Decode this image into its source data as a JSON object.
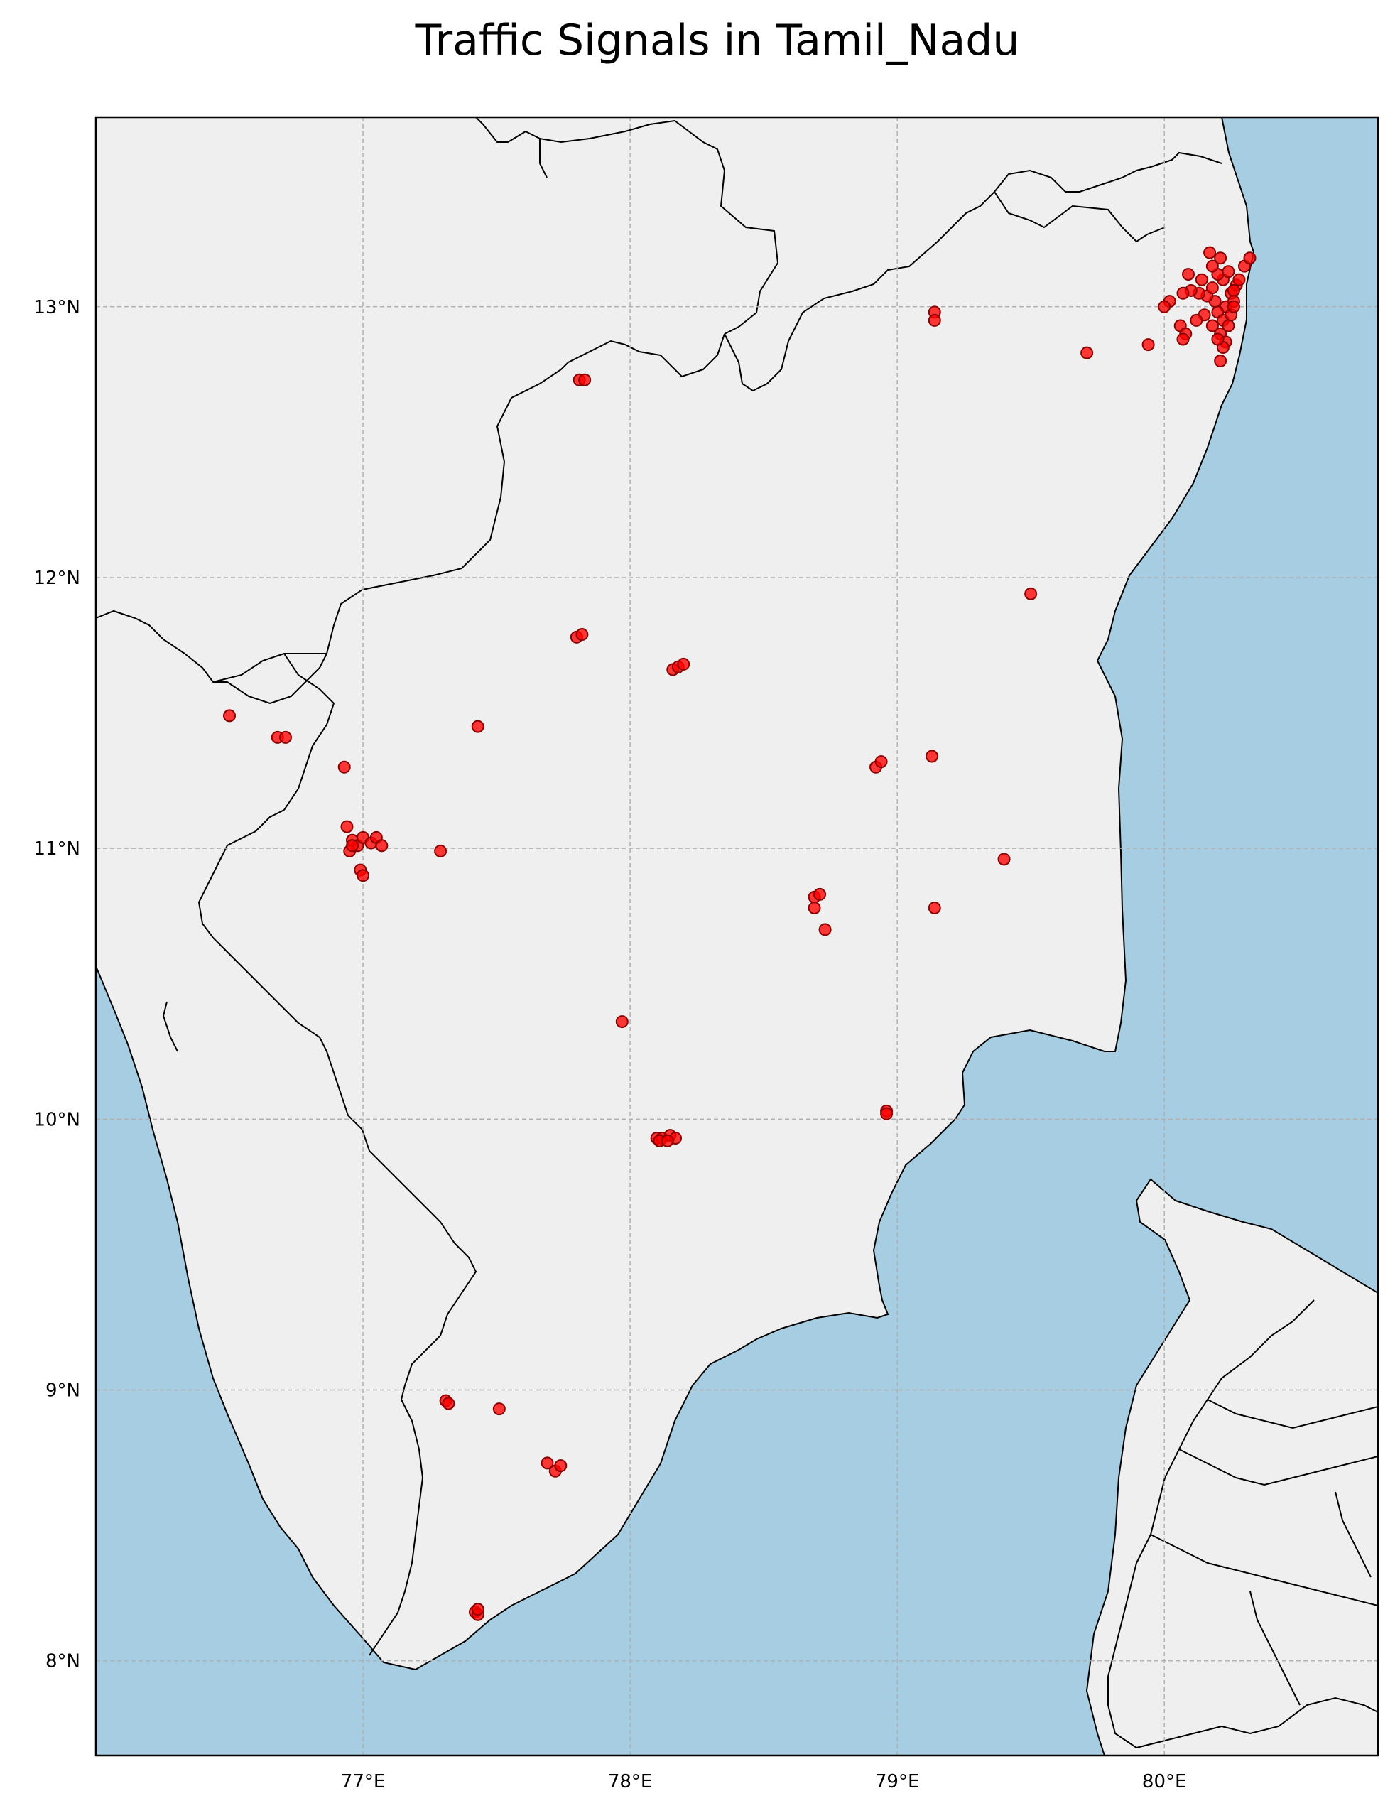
{
  "title": "Traffic Signals in Tamil_Nadu",
  "colors": {
    "sea": "#a6cde2",
    "land": "#efefef",
    "border": "#000000",
    "marker_fill": "#ff0000",
    "marker_edge": "#8b0000",
    "grid": "#b0b0b0"
  },
  "axes": {
    "xlim": [
      76.0,
      80.8
    ],
    "ylim": [
      7.65,
      13.7
    ],
    "x_ticks": [
      {
        "v": 77,
        "label": "77°E"
      },
      {
        "v": 78,
        "label": "78°E"
      },
      {
        "v": 79,
        "label": "79°E"
      },
      {
        "v": 80,
        "label": "80°E"
      }
    ],
    "y_ticks": [
      {
        "v": 13,
        "label": "13°N"
      },
      {
        "v": 12,
        "label": "12°N"
      },
      {
        "v": 11,
        "label": "11°N"
      },
      {
        "v": 10,
        "label": "10°N"
      },
      {
        "v": 9,
        "label": "9°N"
      },
      {
        "v": 8,
        "label": "8°N"
      }
    ],
    "grid": true,
    "grid_style": "dashed"
  },
  "chart_data": {
    "type": "scatter",
    "title": "Traffic Signals in Tamil_Nadu",
    "xlabel": "",
    "ylabel": "",
    "x_unit": "longitude (°E)",
    "y_unit": "latitude (°N)",
    "points": [
      [
        80.27,
        13.08
      ],
      [
        80.25,
        13.05
      ],
      [
        80.22,
        13.1
      ],
      [
        80.2,
        13.12
      ],
      [
        80.18,
        13.15
      ],
      [
        80.17,
        13.2
      ],
      [
        80.21,
        13.18
      ],
      [
        80.24,
        13.13
      ],
      [
        80.26,
        13.06
      ],
      [
        80.28,
        13.1
      ],
      [
        80.3,
        13.15
      ],
      [
        80.32,
        13.18
      ],
      [
        80.23,
        13.0
      ],
      [
        80.2,
        12.98
      ],
      [
        80.22,
        12.95
      ],
      [
        80.24,
        12.93
      ],
      [
        80.21,
        12.9
      ],
      [
        80.23,
        12.87
      ],
      [
        80.22,
        12.85
      ],
      [
        80.21,
        12.8
      ],
      [
        80.19,
        13.02
      ],
      [
        80.16,
        13.04
      ],
      [
        80.13,
        13.05
      ],
      [
        80.1,
        13.06
      ],
      [
        80.07,
        13.05
      ],
      [
        80.09,
        13.12
      ],
      [
        80.14,
        13.1
      ],
      [
        80.18,
        13.07
      ],
      [
        80.26,
        13.02
      ],
      [
        80.25,
        12.97
      ],
      [
        80.15,
        12.97
      ],
      [
        80.18,
        12.93
      ],
      [
        80.12,
        12.95
      ],
      [
        80.06,
        12.93
      ],
      [
        80.08,
        12.9
      ],
      [
        80.07,
        12.88
      ],
      [
        80.02,
        13.02
      ],
      [
        80.0,
        13.0
      ],
      [
        79.94,
        12.86
      ],
      [
        79.71,
        12.83
      ],
      [
        79.14,
        12.98
      ],
      [
        79.14,
        12.95
      ],
      [
        80.2,
        12.88
      ],
      [
        80.26,
        13.0
      ],
      [
        77.81,
        12.73
      ],
      [
        77.83,
        12.73
      ],
      [
        79.5,
        11.94
      ],
      [
        77.8,
        11.78
      ],
      [
        77.82,
        11.79
      ],
      [
        78.16,
        11.66
      ],
      [
        78.18,
        11.67
      ],
      [
        78.2,
        11.68
      ],
      [
        76.5,
        11.49
      ],
      [
        76.68,
        11.41
      ],
      [
        76.71,
        11.41
      ],
      [
        77.43,
        11.45
      ],
      [
        76.93,
        11.3
      ],
      [
        78.92,
        11.3
      ],
      [
        78.94,
        11.32
      ],
      [
        79.13,
        11.34
      ],
      [
        76.94,
        11.08
      ],
      [
        76.96,
        11.03
      ],
      [
        76.98,
        11.01
      ],
      [
        77.0,
        11.04
      ],
      [
        77.03,
        11.02
      ],
      [
        77.05,
        11.04
      ],
      [
        77.07,
        11.01
      ],
      [
        76.95,
        10.99
      ],
      [
        76.99,
        10.92
      ],
      [
        77.0,
        10.9
      ],
      [
        77.29,
        10.99
      ],
      [
        76.96,
        11.01
      ],
      [
        79.4,
        10.96
      ],
      [
        78.69,
        10.82
      ],
      [
        78.71,
        10.83
      ],
      [
        78.69,
        10.78
      ],
      [
        78.73,
        10.7
      ],
      [
        79.14,
        10.78
      ],
      [
        77.97,
        10.36
      ],
      [
        78.1,
        9.93
      ],
      [
        78.12,
        9.93
      ],
      [
        78.15,
        9.94
      ],
      [
        78.17,
        9.93
      ],
      [
        78.11,
        9.92
      ],
      [
        78.14,
        9.92
      ],
      [
        78.96,
        10.03
      ],
      [
        78.96,
        10.02
      ],
      [
        77.31,
        8.96
      ],
      [
        77.32,
        8.95
      ],
      [
        77.51,
        8.93
      ],
      [
        77.69,
        8.73
      ],
      [
        77.72,
        8.7
      ],
      [
        77.74,
        8.72
      ],
      [
        77.42,
        8.18
      ],
      [
        77.43,
        8.17
      ],
      [
        77.43,
        8.19
      ]
    ]
  }
}
